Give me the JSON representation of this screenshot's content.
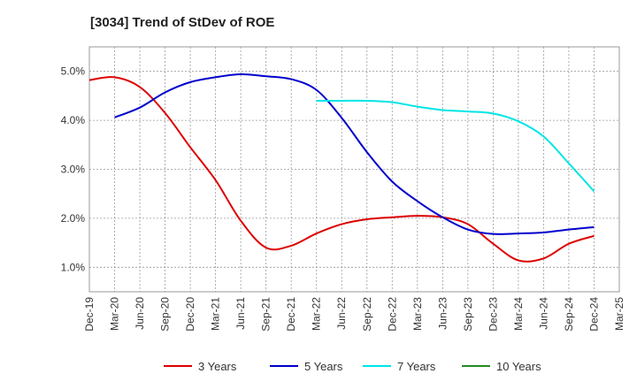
{
  "chart_data": {
    "type": "line",
    "title": "[3034]  Trend of StDev of ROE",
    "xlabel": "",
    "ylabel": "",
    "x_ticks": [
      "Dec-19",
      "Mar-20",
      "Jun-20",
      "Sep-20",
      "Dec-20",
      "Mar-21",
      "Jun-21",
      "Sep-21",
      "Dec-21",
      "Mar-22",
      "Jun-22",
      "Sep-22",
      "Dec-22",
      "Mar-23",
      "Jun-23",
      "Sep-23",
      "Dec-23",
      "Mar-24",
      "Jun-24",
      "Sep-24",
      "Dec-24",
      "Mar-25"
    ],
    "y_ticks": [
      "1.0%",
      "2.0%",
      "3.0%",
      "4.0%",
      "5.0%"
    ],
    "y_tick_values": [
      1.0,
      2.0,
      3.0,
      4.0,
      5.0
    ],
    "ylim": [
      0.5,
      5.5
    ],
    "grid": true,
    "legend_position": "bottom",
    "series": [
      {
        "name": "3 Years",
        "color": "#dd0000",
        "x": [
          "Dec-19",
          "Mar-20",
          "Jun-20",
          "Sep-20",
          "Dec-20",
          "Mar-21",
          "Jun-21",
          "Sep-21",
          "Dec-21",
          "Mar-22",
          "Jun-22",
          "Sep-22",
          "Dec-22",
          "Mar-23",
          "Jun-23",
          "Sep-23",
          "Dec-23",
          "Mar-24",
          "Jun-24",
          "Sep-24",
          "Dec-24"
        ],
        "values": [
          4.82,
          4.88,
          4.68,
          4.15,
          3.45,
          2.78,
          1.95,
          1.4,
          1.44,
          1.69,
          1.88,
          1.98,
          2.02,
          2.05,
          2.02,
          1.88,
          1.48,
          1.14,
          1.18,
          1.48,
          1.64
        ]
      },
      {
        "name": "5 Years",
        "color": "#0000cc",
        "x": [
          "Mar-20",
          "Jun-20",
          "Sep-20",
          "Dec-20",
          "Mar-21",
          "Jun-21",
          "Sep-21",
          "Dec-21",
          "Mar-22",
          "Jun-22",
          "Sep-22",
          "Dec-22",
          "Mar-23",
          "Jun-23",
          "Sep-23",
          "Dec-23",
          "Mar-24",
          "Jun-24",
          "Sep-24",
          "Dec-24"
        ],
        "values": [
          4.06,
          4.26,
          4.57,
          4.78,
          4.88,
          4.94,
          4.9,
          4.84,
          4.62,
          4.05,
          3.35,
          2.75,
          2.35,
          2.02,
          1.77,
          1.68,
          1.69,
          1.71,
          1.77,
          1.82
        ]
      },
      {
        "name": "7 Years",
        "color": "#00e5e5",
        "x": [
          "Mar-22",
          "Jun-22",
          "Sep-22",
          "Dec-22",
          "Mar-23",
          "Jun-23",
          "Sep-23",
          "Dec-23",
          "Mar-24",
          "Jun-24",
          "Sep-24",
          "Dec-24"
        ],
        "values": [
          4.4,
          4.4,
          4.4,
          4.37,
          4.28,
          4.21,
          4.18,
          4.14,
          3.98,
          3.67,
          3.12,
          2.55
        ]
      },
      {
        "name": "10 Years",
        "color": "#228b22",
        "x": [],
        "values": []
      }
    ]
  }
}
